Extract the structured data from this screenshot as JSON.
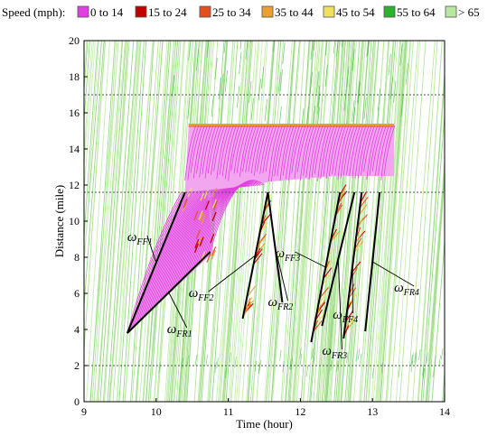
{
  "chart_data": {
    "type": "scatter",
    "legend": {
      "title": "Speed (mph):",
      "placement": "top",
      "items": [
        {
          "label": "0 to 14",
          "color": "#e040e0"
        },
        {
          "label": "15 to 24",
          "color": "#c00000"
        },
        {
          "label": "25 to 34",
          "color": "#e05020"
        },
        {
          "label": "35 to 44",
          "color": "#e8a030"
        },
        {
          "label": "45 to 54",
          "color": "#f0e060"
        },
        {
          "label": "55 to 64",
          "color": "#30b030"
        },
        {
          "label": "> 65",
          "color": "#b8e8a0"
        }
      ]
    },
    "xlabel": "Time (hour)",
    "ylabel": "Distance (mile)",
    "xlim": [
      9,
      14
    ],
    "ylim": [
      0,
      20
    ],
    "xticks": [
      9,
      10,
      11,
      12,
      13,
      14
    ],
    "yticks": [
      0,
      2,
      4,
      6,
      8,
      10,
      12,
      14,
      16,
      18,
      20
    ],
    "reference_lines_y": [
      2,
      11.6,
      17
    ],
    "congested_region": {
      "color": "#e040e0",
      "polygon": [
        [
          9.6,
          3.8
        ],
        [
          10.4,
          11.6
        ],
        [
          10.45,
          15.3
        ],
        [
          13.3,
          15.3
        ],
        [
          13.3,
          12.5
        ],
        [
          12.5,
          12.5
        ],
        [
          11.6,
          12.2
        ],
        [
          10.7,
          11.6
        ],
        [
          10.8,
          8.3
        ]
      ]
    },
    "wave_lines": [
      {
        "name": "ω",
        "sub": "FF1",
        "start": [
          9.6,
          3.8
        ],
        "end": [
          10.4,
          11.6
        ]
      },
      {
        "name": "ω",
        "sub": "FR1",
        "start": [
          9.6,
          3.8
        ],
        "end": [
          10.75,
          8.3
        ]
      },
      {
        "name": "ω",
        "sub": "FF2",
        "start": [
          11.2,
          4.6
        ],
        "end": [
          11.55,
          11.6
        ]
      },
      {
        "name": "ω",
        "sub": "FR2",
        "start": [
          11.55,
          11.6
        ],
        "end": [
          11.75,
          5.5
        ]
      },
      {
        "name": "ω",
        "sub": "FF3",
        "start": [
          12.15,
          3.3
        ],
        "end": [
          12.55,
          11.6
        ]
      },
      {
        "name": "ω",
        "sub": "FR3",
        "start": [
          12.3,
          4.2
        ],
        "end": [
          12.75,
          11.6
        ]
      },
      {
        "name": "ω",
        "sub": "FF4",
        "start": [
          12.6,
          3.5
        ],
        "end": [
          12.85,
          11.6
        ]
      },
      {
        "name": "ω",
        "sub": "FR4",
        "start": [
          12.9,
          3.9
        ],
        "end": [
          13.1,
          11.6
        ]
      }
    ],
    "wave_labels": [
      {
        "name": "ω",
        "sub": "FF1",
        "at": [
          9.6,
          8.9
        ]
      },
      {
        "name": "ω",
        "sub": "FR1",
        "at": [
          10.15,
          3.8
        ]
      },
      {
        "name": "ω",
        "sub": "FF2",
        "at": [
          10.45,
          5.8
        ]
      },
      {
        "name": "ω",
        "sub": "FR2",
        "at": [
          11.55,
          5.3
        ]
      },
      {
        "name": "ω",
        "sub": "FF3",
        "at": [
          11.65,
          8.0
        ]
      },
      {
        "name": "ω",
        "sub": "FR3",
        "at": [
          12.3,
          2.6
        ]
      },
      {
        "name": "ω",
        "sub": "FF4",
        "at": [
          12.45,
          4.6
        ]
      },
      {
        "name": "ω",
        "sub": "FR4",
        "at": [
          13.3,
          6.1
        ]
      }
    ]
  }
}
